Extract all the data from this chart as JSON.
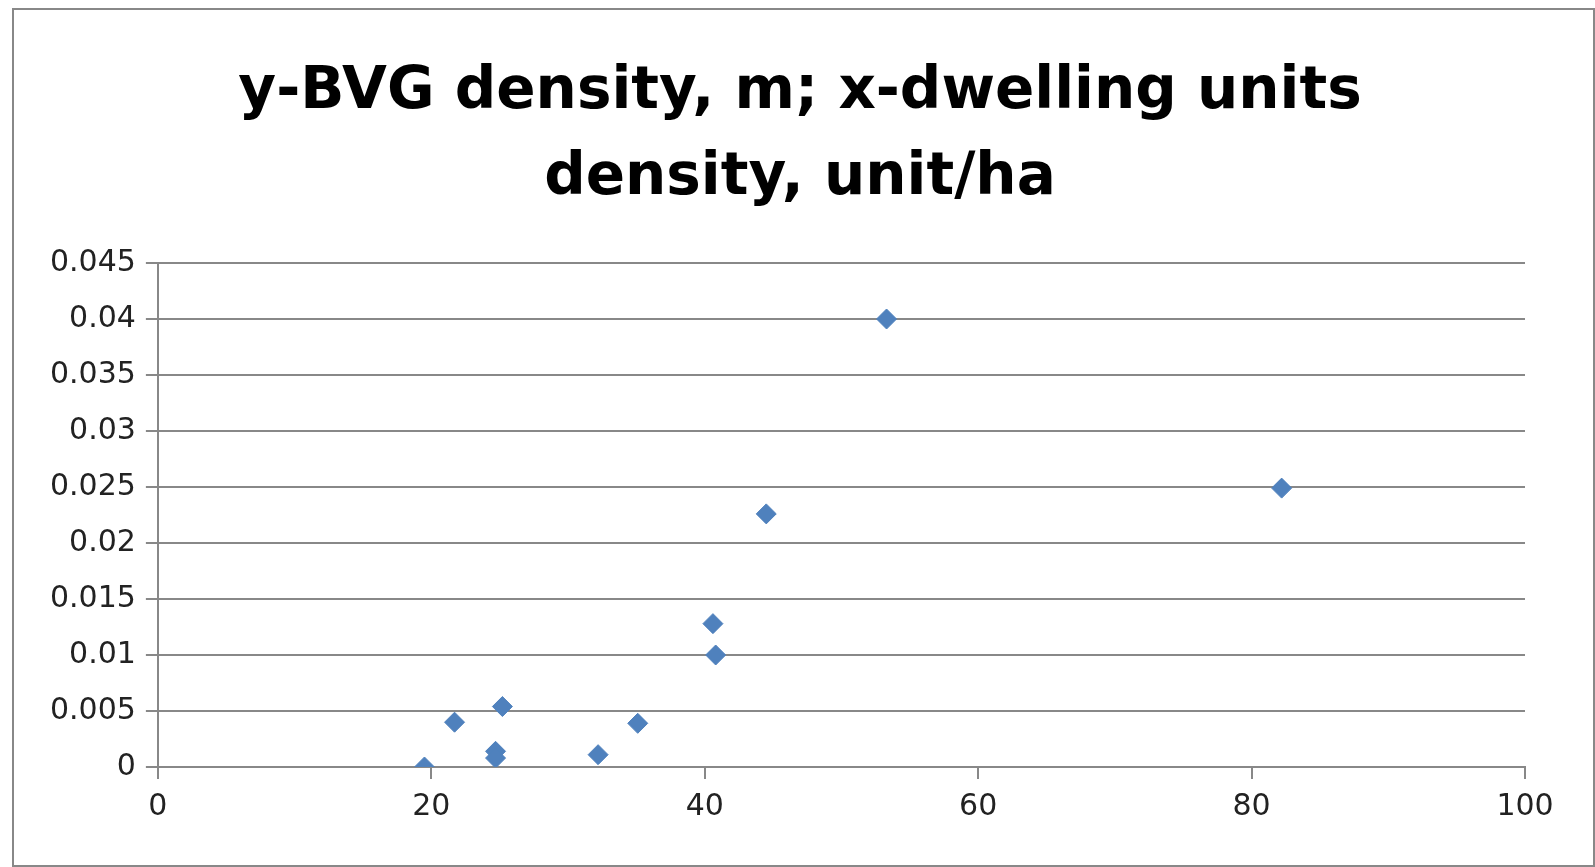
{
  "chart_data": {
    "type": "scatter",
    "title": "y-BVG density, m; x-dwelling units density, unit/ha",
    "series": [
      {
        "color": "#4f81bd",
        "x": [
          19.5,
          21.7,
          25.2,
          24.7,
          24.7,
          32.2,
          35.1,
          40.6,
          40.8,
          44.5,
          53.3,
          82.2
        ],
        "values": [
          0,
          0.004,
          0.0054,
          0.0014,
          0.0008,
          0.0011,
          0.0039,
          0.0128,
          0.01,
          0.0226,
          0.04,
          0.0249
        ]
      }
    ],
    "xlim": [
      0,
      100
    ],
    "xticks": [
      0,
      20,
      40,
      60,
      80,
      100
    ],
    "ylim": [
      0,
      0.045
    ],
    "yticks": [
      0,
      0.005,
      0.01,
      0.015,
      0.02,
      0.025,
      0.03,
      0.035,
      0.04,
      0.045
    ],
    "grid": "y",
    "marker": "diamond",
    "legend": false
  }
}
